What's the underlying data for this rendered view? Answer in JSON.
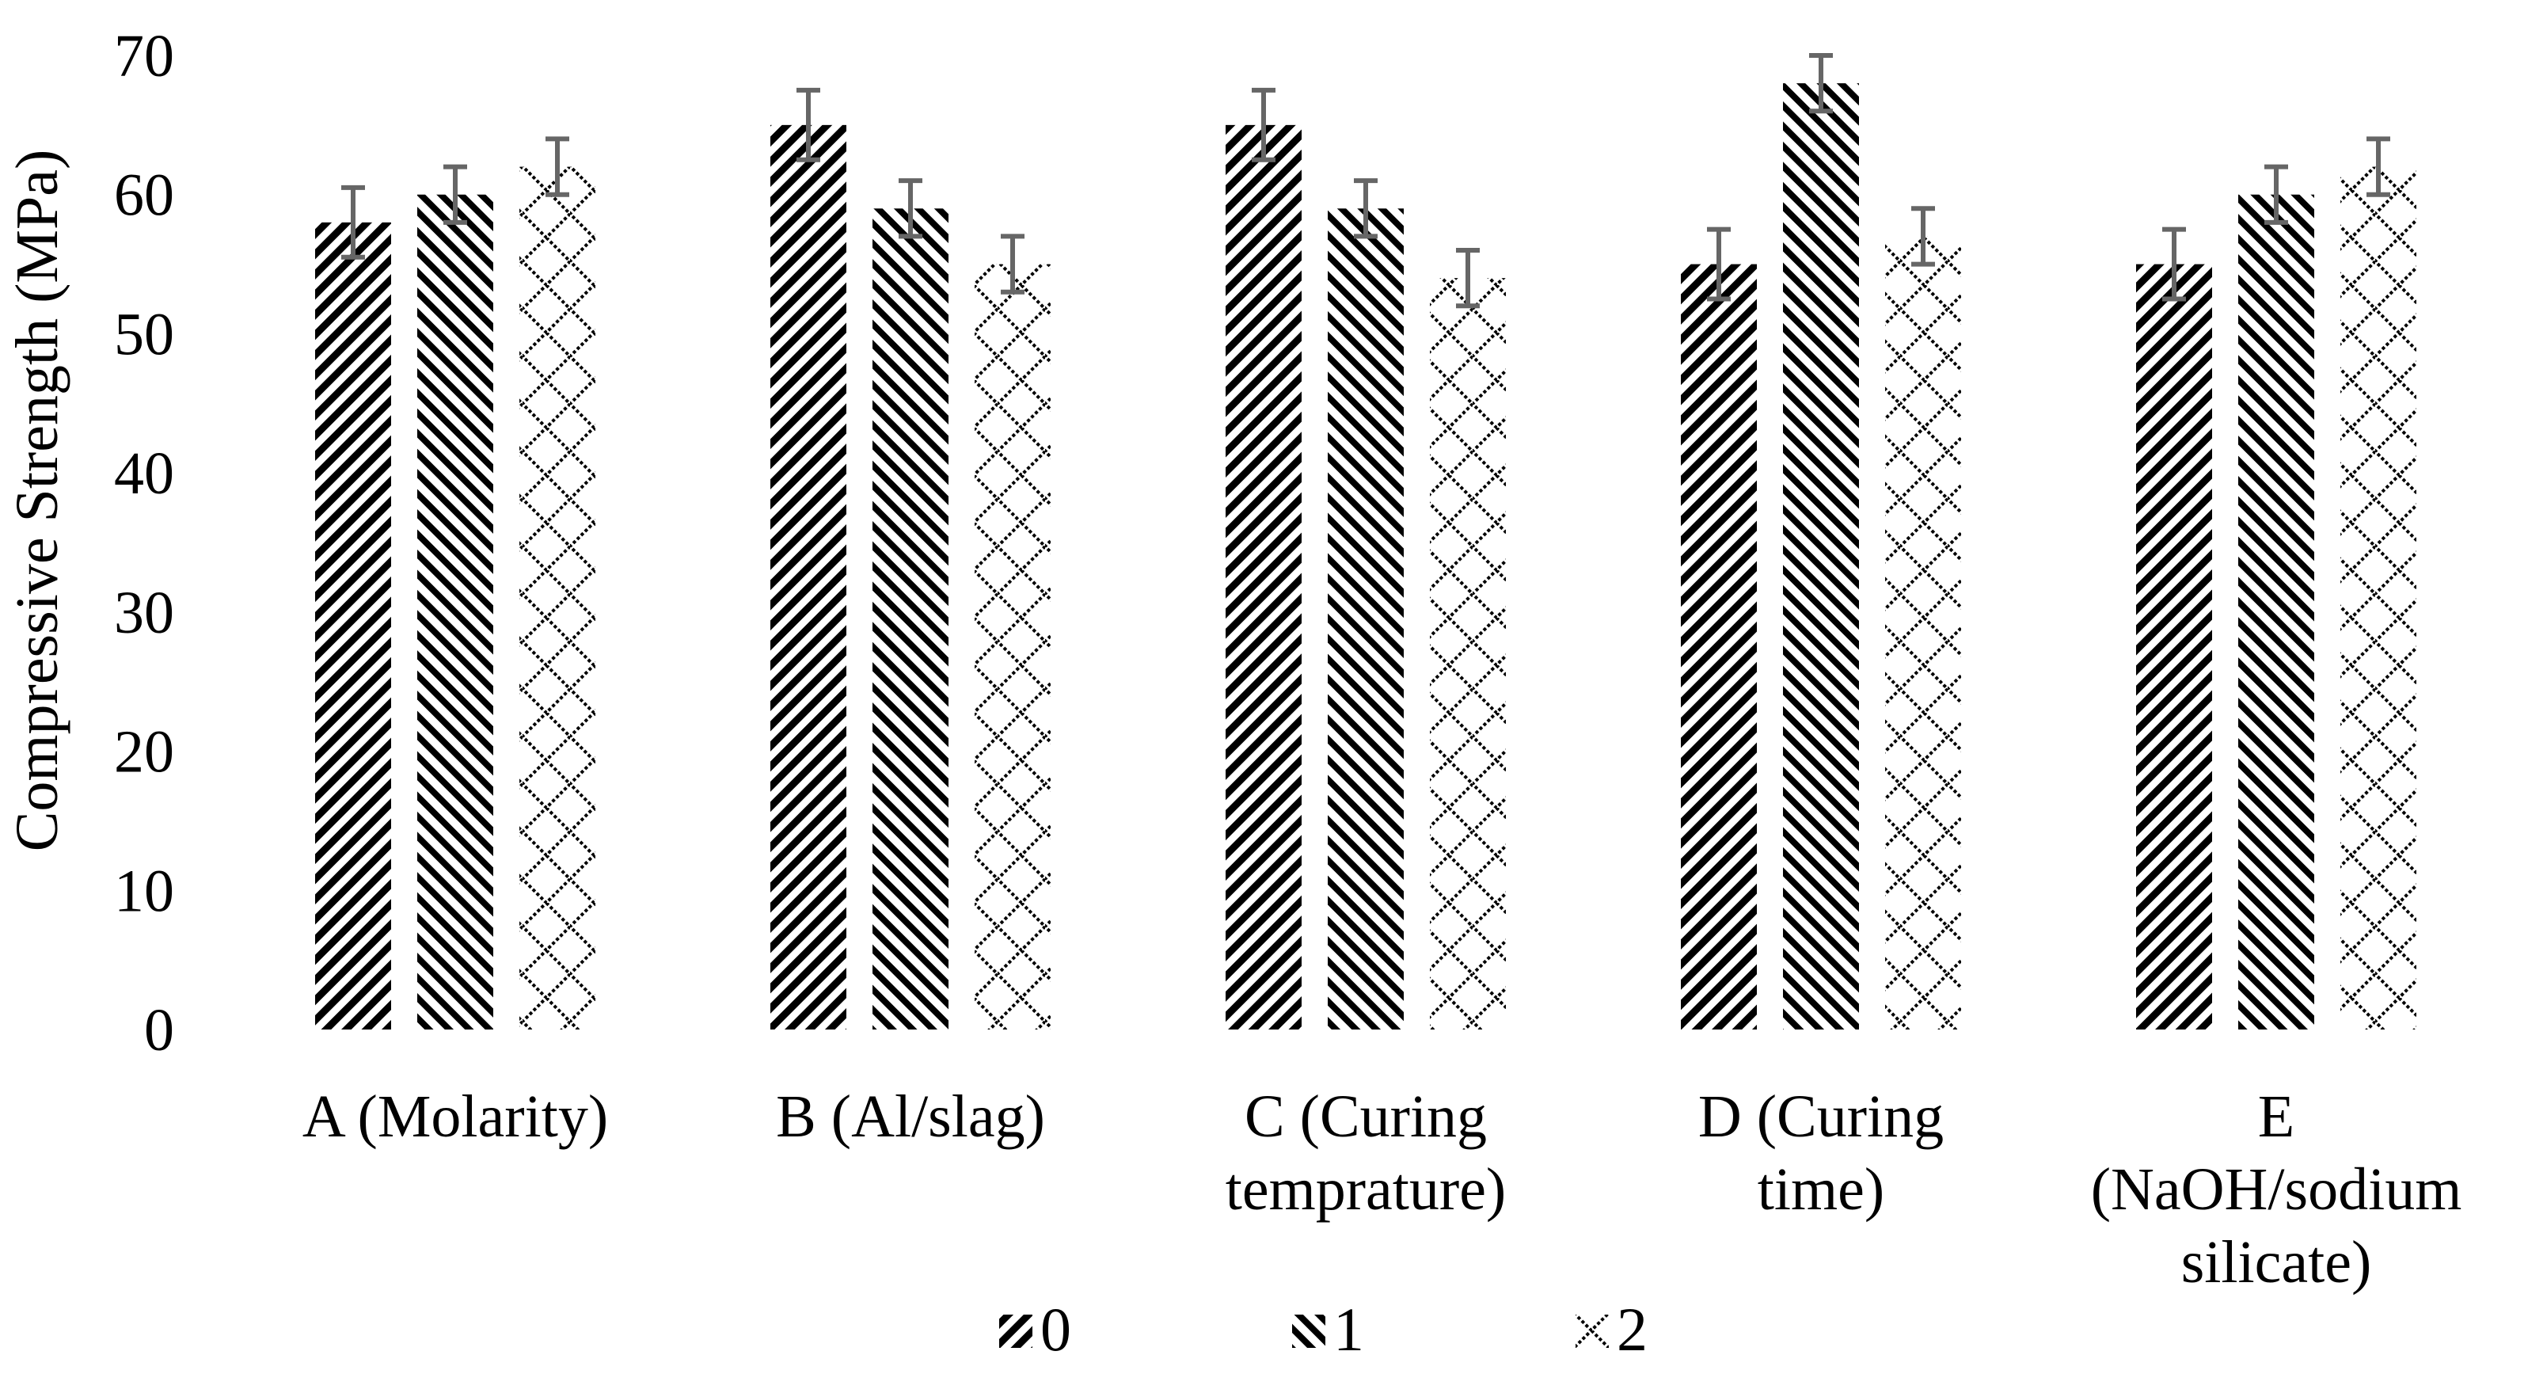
{
  "chart_data": {
    "type": "bar",
    "title": "",
    "xlabel": "",
    "ylabel": "Compressive Strength (MPa)",
    "ylim": [
      0,
      70
    ],
    "yticks": [
      0,
      10,
      20,
      30,
      40,
      50,
      60,
      70
    ],
    "grid": false,
    "legend_position": "bottom",
    "categories": [
      [
        "A (Molarity)"
      ],
      [
        "B (Al/slag)"
      ],
      [
        "C (Curing",
        "temprature)"
      ],
      [
        "D (Curing",
        "time)"
      ],
      [
        "E",
        "(NaOH/sodium",
        "silicate)"
      ]
    ],
    "series": [
      {
        "name": "0",
        "pattern": "dense-diagonal",
        "values": [
          58,
          65,
          65,
          55,
          55
        ],
        "errors": [
          2.5,
          2.5,
          2.5,
          2.5,
          2.5
        ]
      },
      {
        "name": "1",
        "pattern": "dense-backdiagonal",
        "values": [
          60,
          59,
          59,
          68,
          60
        ],
        "errors": [
          2,
          2,
          2,
          2,
          2
        ]
      },
      {
        "name": "2",
        "pattern": "diamond-lattice",
        "values": [
          62,
          55,
          54,
          57,
          62
        ],
        "errors": [
          2,
          2,
          2,
          2,
          2
        ]
      }
    ]
  },
  "colors": {
    "bar": "#000000",
    "error_bar": "#666666",
    "background": "#ffffff"
  }
}
